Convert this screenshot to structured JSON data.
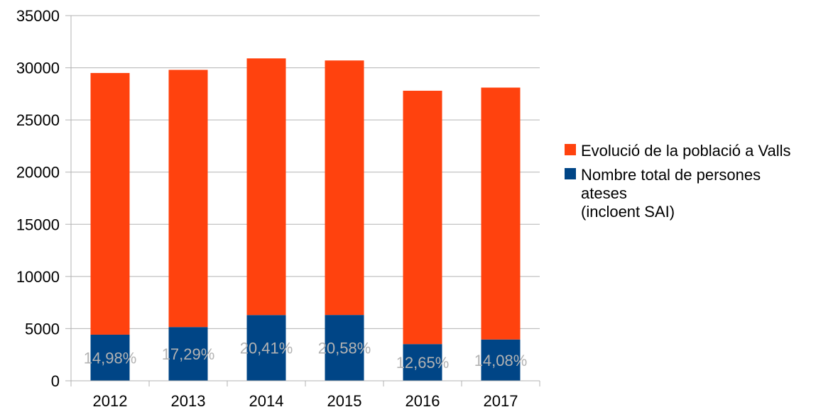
{
  "chart_data": {
    "type": "bar",
    "stacked": true,
    "categories": [
      "2012",
      "2013",
      "2014",
      "2015",
      "2016",
      "2017"
    ],
    "ylim": [
      0,
      35000
    ],
    "yticks": [
      0,
      5000,
      10000,
      15000,
      20000,
      25000,
      30000,
      35000
    ],
    "grid": true,
    "legend_position": "right",
    "series": [
      {
        "name": "Nombre total de persones ateses (incloent SAI)",
        "legend_lines": [
          "Nombre total de persones",
          "ateses",
          "(incloent SAI)"
        ],
        "color": "#004586",
        "values": [
          4420,
          5150,
          6300,
          6310,
          3520,
          3960
        ],
        "data_labels": [
          "14,98%",
          "17,29%",
          "20,41%",
          "20,58%",
          "12,65%",
          "14,08%"
        ]
      },
      {
        "name": "Evolució de la població a Valls",
        "legend_lines": [
          "Evolució de la població a Valls"
        ],
        "color": "#ff420e",
        "values": [
          29500,
          29800,
          30900,
          30700,
          27800,
          28100
        ]
      }
    ]
  }
}
